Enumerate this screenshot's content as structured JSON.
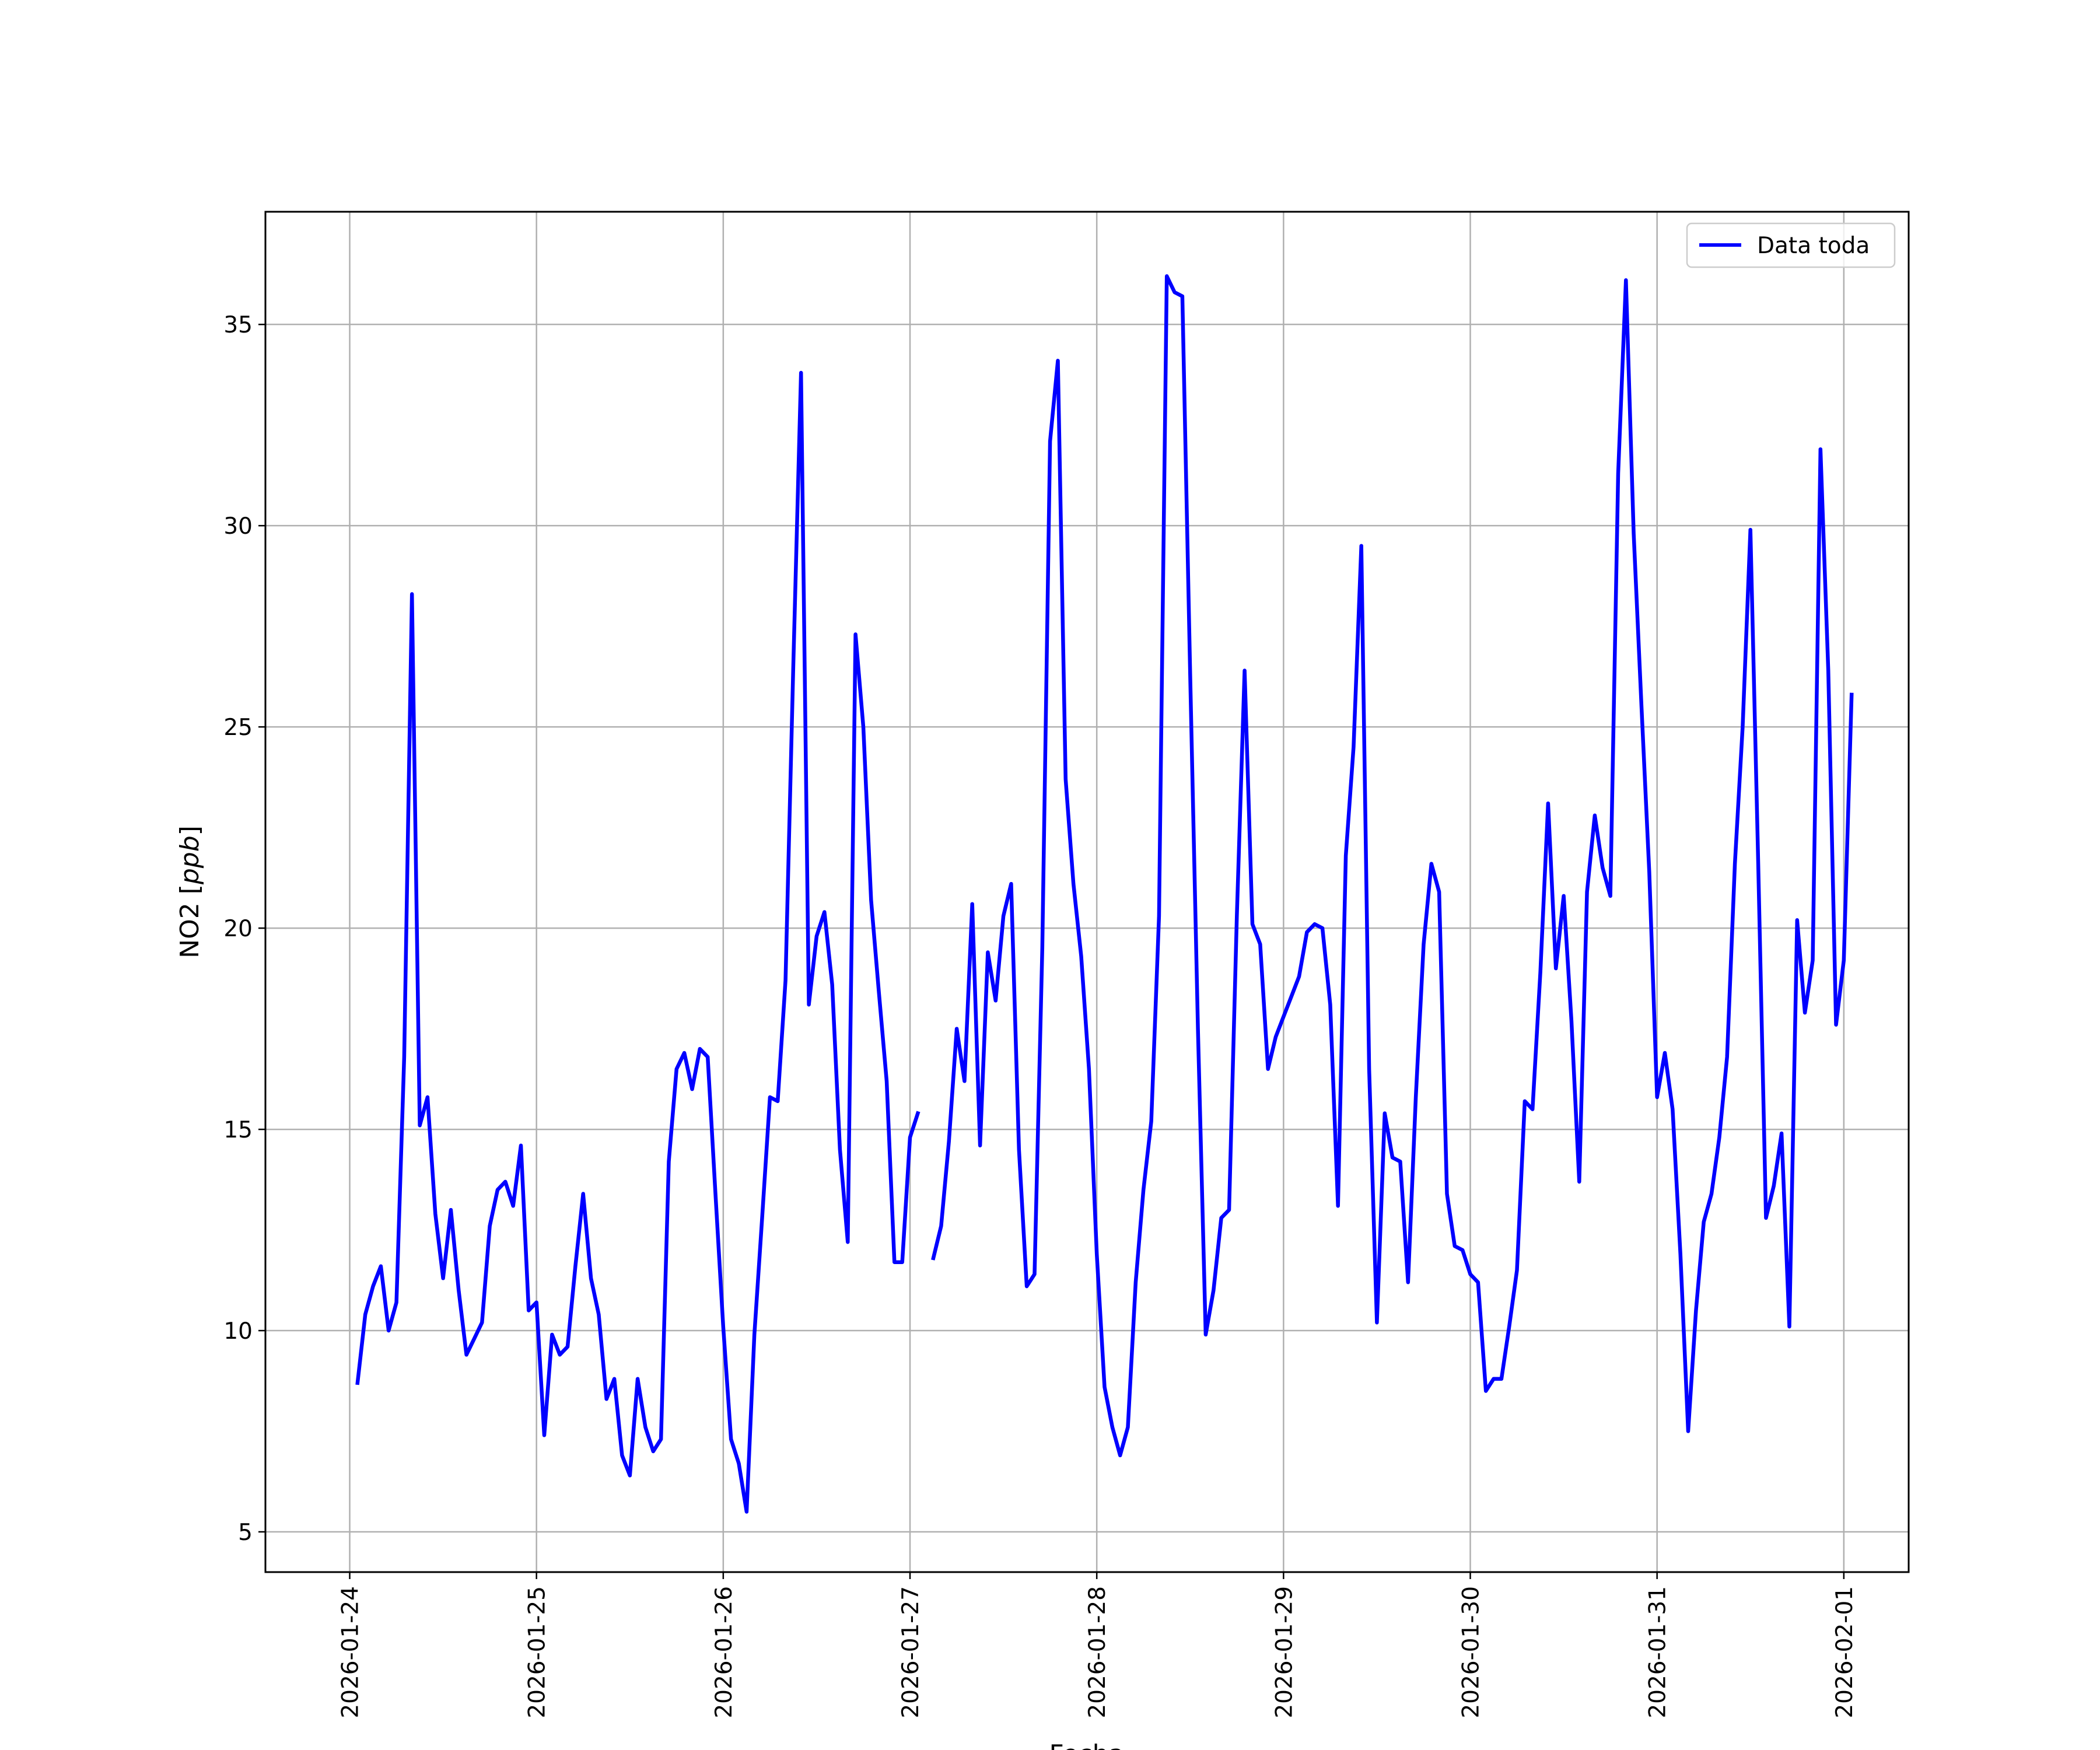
{
  "chart_data": {
    "type": "line",
    "title": "",
    "xlabel": "Fecha",
    "ylabel": "NO2 [ppb]",
    "ylabel_parts": {
      "prefix": "NO2 [",
      "unit": "ppb",
      "suffix": "]"
    },
    "x_tick_labels": [
      "2026-01-24",
      "2026-01-25",
      "2026-01-26",
      "2026-01-27",
      "2026-01-28",
      "2026-01-29",
      "2026-01-30",
      "2026-01-31",
      "2026-02-01"
    ],
    "y_ticks": [
      5,
      10,
      15,
      20,
      25,
      30,
      35
    ],
    "xlim": [
      "2026-01-23T13:10",
      "2026-02-01T08:20"
    ],
    "ylim": [
      4.0,
      37.8
    ],
    "grid": true,
    "legend_position": "top-right",
    "series": [
      {
        "name": "Data toda",
        "color": "#0000ff",
        "x_start": "2026-01-24T01:00",
        "x_step_hours": 1,
        "values": [
          8.7,
          10.4,
          11.1,
          11.6,
          10.0,
          10.7,
          16.8,
          28.3,
          15.1,
          15.8,
          12.9,
          11.3,
          13.0,
          11.0,
          9.4,
          9.8,
          10.2,
          12.6,
          13.5,
          13.7,
          13.1,
          14.6,
          10.5,
          10.7,
          7.4,
          9.9,
          9.4,
          9.6,
          11.6,
          13.4,
          11.3,
          10.4,
          8.3,
          8.8,
          6.9,
          6.4,
          8.8,
          7.6,
          7.0,
          7.3,
          14.2,
          16.5,
          16.9,
          16.0,
          17.0,
          16.8,
          13.4,
          10.1,
          7.3,
          6.7,
          5.5,
          9.9,
          12.8,
          15.8,
          15.7,
          18.7,
          26.5,
          33.8,
          18.1,
          19.8,
          20.4,
          18.6,
          14.5,
          12.2,
          27.3,
          25.0,
          20.7,
          18.4,
          16.2,
          11.7,
          11.7,
          14.8,
          15.4,
          null,
          11.8,
          12.6,
          14.7,
          17.5,
          16.2,
          20.6,
          14.6,
          19.4,
          18.2,
          20.3,
          21.1,
          14.5,
          11.1,
          11.4,
          19.5,
          32.1,
          34.1,
          23.7,
          21.1,
          19.3,
          16.5,
          11.9,
          8.6,
          7.6,
          6.9,
          7.6,
          11.2,
          13.5,
          15.2,
          20.3,
          36.2,
          35.8,
          35.7,
          26.3,
          17.5,
          9.9,
          11.0,
          12.8,
          13.0,
          20.3,
          26.4,
          20.1,
          19.6,
          16.5,
          17.3,
          17.8,
          18.3,
          18.8,
          19.9,
          20.1,
          20.0,
          18.1,
          13.1,
          21.8,
          24.5,
          29.5,
          16.5,
          10.2,
          15.4,
          14.3,
          14.2,
          11.2,
          15.8,
          19.6,
          21.6,
          20.9,
          13.4,
          12.1,
          12.0,
          11.4,
          11.2,
          8.5,
          8.8,
          8.8,
          10.1,
          11.5,
          15.7,
          15.5,
          18.9,
          23.1,
          19.0,
          20.8,
          17.7,
          13.7,
          20.9,
          22.8,
          21.5,
          20.8,
          31.3,
          36.1,
          29.8,
          25.5,
          21.4,
          15.8,
          16.9,
          15.5,
          11.9,
          7.5,
          10.5,
          12.7,
          13.4,
          14.8,
          16.8,
          21.6,
          25.0,
          29.9,
          21.6,
          12.8,
          13.6,
          14.9,
          10.1,
          20.2,
          17.9,
          19.2,
          31.9,
          26.4,
          17.6,
          19.2,
          25.8
        ]
      }
    ]
  }
}
